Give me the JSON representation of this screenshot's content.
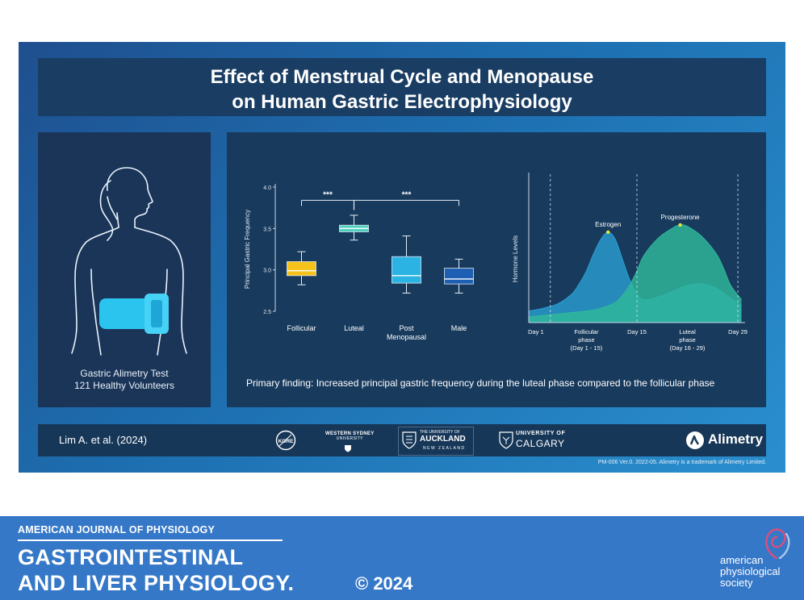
{
  "poster": {
    "title_line1": "Effect of Menstrual Cycle and Menopause",
    "title_line2": "on Human Gastric Electrophysiology",
    "left": {
      "caption_line1": "Gastric Alimetry Test",
      "caption_line2": "121 Healthy Volunteers"
    },
    "finding": "Primary finding: Increased principal gastric frequency during the luteal phase compared to the follicular phase",
    "citation": "Lim A. et al. (2024)",
    "logos": {
      "kore": "KORE",
      "western_sydney_1": "WESTERN SYDNEY",
      "western_sydney_2": "UNIVERSITY",
      "auckland_1": "THE UNIVERSITY OF",
      "auckland_2": "AUCKLAND",
      "auckland_3": "NEW ZEALAND",
      "calgary_1": "UNIVERSITY OF",
      "calgary_2": "CALGARY",
      "alimetry": "Alimetry"
    },
    "trademark": "PM-006 Ver.0. 2022-05. Alimetry is a trademark of Alimetry Limited."
  },
  "chart_data": [
    {
      "type": "box",
      "ylabel": "Principal Gastric Frequency",
      "ylim": [
        2.5,
        4.0
      ],
      "yticks": [
        "2.5",
        "3.0",
        "3.5",
        "4.0"
      ],
      "categories": [
        "Follicular",
        "Luteal",
        "Post Menopausal",
        "Male"
      ],
      "category_lines": [
        [
          "Follicular"
        ],
        [
          "Luteal"
        ],
        [
          "Post",
          "Menopausal"
        ],
        [
          "Male"
        ]
      ],
      "boxes": [
        {
          "min": 2.82,
          "q1": 2.93,
          "median": 2.99,
          "q3": 3.1,
          "max": 3.22,
          "color": "#f4c21a"
        },
        {
          "min": 3.36,
          "q1": 3.46,
          "median": 3.5,
          "q3": 3.54,
          "max": 3.66,
          "color": "#4fd1bf"
        },
        {
          "min": 2.72,
          "q1": 2.84,
          "median": 2.93,
          "q3": 3.16,
          "max": 3.41,
          "color": "#2bb4e3"
        },
        {
          "min": 2.72,
          "q1": 2.83,
          "median": 2.89,
          "q3": 3.02,
          "max": 3.13,
          "color": "#1f5fb3"
        }
      ],
      "annotations": [
        {
          "text": "***",
          "from": 0,
          "to": 1
        },
        {
          "text": "***",
          "from": 1,
          "to": 3
        }
      ]
    },
    {
      "type": "area",
      "ylabel": "Hormone Levels",
      "x_ticks": [
        {
          "lines": [
            "Day 1"
          ],
          "day": 1
        },
        {
          "lines": [
            "Follicular",
            "phase",
            "(Day 1 - 15)"
          ],
          "day": 8
        },
        {
          "lines": [
            "Day 15"
          ],
          "day": 15
        },
        {
          "lines": [
            "Luteal",
            "phase",
            "(Day 16 - 29)"
          ],
          "day": 22
        },
        {
          "lines": [
            "Day 29"
          ],
          "day": 29
        }
      ],
      "vlines": [
        3,
        15,
        29
      ],
      "xlim": [
        0,
        30
      ],
      "ylim": [
        0,
        1
      ],
      "series": [
        {
          "name": "Estrogen",
          "color": "#2a9ecf",
          "x": [
            0,
            2,
            4,
            6,
            7,
            8,
            9,
            10,
            11,
            12,
            13,
            14,
            15,
            16,
            18,
            20,
            22,
            24,
            26,
            28,
            29.5
          ],
          "y": [
            0.08,
            0.1,
            0.13,
            0.2,
            0.27,
            0.36,
            0.48,
            0.58,
            0.63,
            0.58,
            0.44,
            0.3,
            0.2,
            0.16,
            0.18,
            0.22,
            0.26,
            0.27,
            0.24,
            0.17,
            0.12
          ]
        },
        {
          "name": "Progesterone",
          "color": "#2fb89a",
          "x": [
            0,
            2,
            4,
            6,
            8,
            10,
            12,
            13,
            14,
            15,
            16,
            18,
            20,
            21,
            22,
            24,
            26,
            27,
            28,
            29.5
          ],
          "y": [
            0.04,
            0.05,
            0.06,
            0.07,
            0.08,
            0.1,
            0.14,
            0.19,
            0.26,
            0.36,
            0.47,
            0.59,
            0.66,
            0.68,
            0.67,
            0.6,
            0.48,
            0.38,
            0.26,
            0.16
          ]
        }
      ],
      "peak_labels": [
        {
          "text": "Estrogen",
          "x": 11,
          "y": 0.63
        },
        {
          "text": "Progesterone",
          "x": 21,
          "y": 0.68
        }
      ]
    }
  ],
  "banner": {
    "journal_small": "AMERICAN JOURNAL OF PHYSIOLOGY",
    "journal_line1": "GASTROINTESTINAL",
    "journal_line2": "AND LIVER PHYSIOLOGY.",
    "copyright": "© 2024",
    "society_1": "american",
    "society_2": "physiological",
    "society_3": "society"
  },
  "colors": {
    "panel": "#173a5e",
    "banner": "#3678c8",
    "accent_cyan": "#2bc4ef"
  }
}
